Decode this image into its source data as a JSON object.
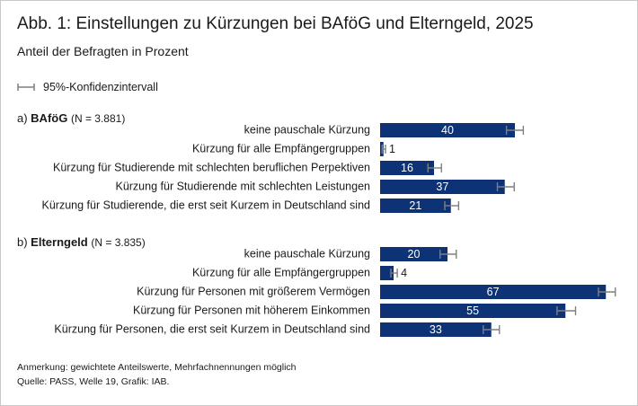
{
  "title": "Abb. 1: Einstellungen zu Kürzungen bei BAföG und Elterngeld, 2025",
  "subtitle": "Anteil der Befragten in Prozent",
  "legend": {
    "label": "95%-Konfidenzintervall"
  },
  "notes": {
    "remark": "Anmerkung: gewichtete Anteilswerte, Mehrfachnennungen möglich",
    "source": "Quelle: PASS, Welle 19, Grafik: IAB."
  },
  "colors": {
    "bar": "#0d3276",
    "error_bar": "#7f7f7f",
    "bar_label_inside": "#ffffff",
    "bar_label_outside": "#1a1a1a"
  },
  "chart_data": {
    "type": "bar",
    "orientation": "horizontal",
    "unit": "Prozent",
    "xlim": [
      0,
      70
    ],
    "grid": false,
    "error_bars": "95%-Konfidenzintervall",
    "groups": [
      {
        "letter": "a)",
        "name": "BAföG",
        "n": "(N = 3.881)",
        "categories": [
          "keine pauschale Kürzung",
          "Kürzung für alle Empfängergruppen",
          "Kürzung für Studierende mit schlechten beruflichen Perpektiven",
          "Kürzung für Studierende mit schlechten Leistungen",
          "Kürzung für Studierende, die erst seit Kurzem in Deutschland sind"
        ],
        "values": [
          40,
          1,
          16,
          37,
          21
        ],
        "ci_low": [
          37.5,
          0.6,
          14.2,
          34.8,
          19.2
        ],
        "ci_high": [
          42.5,
          1.6,
          18.2,
          39.8,
          23.3
        ]
      },
      {
        "letter": "b)",
        "name": "Elterngeld",
        "n": "(N = 3.835)",
        "categories": [
          "keine pauschale Kürzung",
          "Kürzung für alle Empfängergruppen",
          "Kürzung für Personen mit größerem Vermögen",
          "Kürzung für Personen mit höherem Einkommen",
          "Kürzung für Personen, die erst seit Kurzem in Deutschland sind"
        ],
        "values": [
          20,
          4,
          67,
          55,
          33
        ],
        "ci_low": [
          17.8,
          3.2,
          64.8,
          52.5,
          30.6
        ],
        "ci_high": [
          22.6,
          5.1,
          69.8,
          58.0,
          35.4
        ]
      }
    ]
  }
}
